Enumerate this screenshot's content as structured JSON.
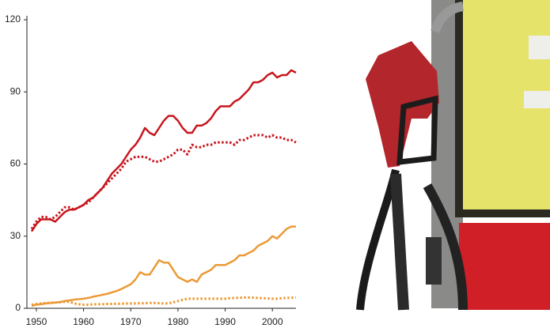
{
  "chart_data": {
    "type": "line",
    "x": [
      1949,
      1950,
      1951,
      1952,
      1953,
      1954,
      1955,
      1956,
      1957,
      1958,
      1959,
      1960,
      1961,
      1962,
      1963,
      1964,
      1965,
      1966,
      1967,
      1968,
      1969,
      1970,
      1971,
      1972,
      1973,
      1974,
      1975,
      1976,
      1977,
      1978,
      1979,
      1980,
      1981,
      1982,
      1983,
      1984,
      1985,
      1986,
      1987,
      1988,
      1989,
      1990,
      1991,
      1992,
      1993,
      1994,
      1995,
      1996,
      1997,
      1998,
      1999,
      2000,
      2001,
      2002,
      2003,
      2004,
      2005
    ],
    "series": [
      {
        "color": "#c8161d",
        "style": "solid",
        "values": [
          32,
          35,
          37,
          37,
          37,
          36,
          38,
          40,
          41,
          41,
          42,
          43,
          45,
          46,
          48,
          50,
          53,
          56,
          58,
          60,
          63,
          66,
          68,
          71,
          75,
          73,
          72,
          75,
          78,
          80,
          80,
          78,
          75,
          73,
          73,
          76,
          76,
          77,
          79,
          82,
          84,
          84,
          84,
          86,
          87,
          89,
          91,
          94,
          94,
          95,
          97,
          98,
          96,
          97,
          97,
          99,
          98
        ]
      },
      {
        "color": "#c8161d",
        "style": "dotted",
        "values": [
          33,
          36,
          38,
          38,
          37,
          38,
          40,
          42,
          42,
          41,
          42,
          43,
          44,
          46,
          48,
          50,
          52,
          54,
          56,
          58,
          61,
          62,
          63,
          63,
          63,
          62,
          61,
          61,
          62,
          63,
          64,
          66,
          66,
          64,
          68,
          67,
          67,
          68,
          68,
          69,
          69,
          69,
          69,
          68,
          70,
          70,
          71,
          72,
          72,
          72,
          71,
          72,
          71,
          71,
          70,
          70,
          69
        ]
      },
      {
        "color": "#eb9a35",
        "style": "solid",
        "values": [
          1,
          1.5,
          1.7,
          2,
          2.2,
          2.4,
          2.6,
          3,
          3.3,
          3.6,
          3.8,
          4,
          4.3,
          4.8,
          5.2,
          5.6,
          6,
          6.6,
          7.2,
          8,
          9,
          10,
          12,
          15,
          14,
          14,
          17,
          20,
          19,
          19,
          16,
          13,
          12,
          11,
          12,
          11,
          14,
          15,
          16,
          18,
          18,
          18,
          19,
          20,
          22,
          22,
          23,
          24,
          26,
          27,
          28,
          30,
          29,
          31,
          33,
          34,
          34
        ]
      },
      {
        "color": "#eb9a35",
        "style": "dotted",
        "values": [
          1.5,
          1.8,
          2,
          2.2,
          2.3,
          2.4,
          2.5,
          2.7,
          2.8,
          2,
          1.7,
          1.5,
          1.5,
          1.6,
          1.7,
          1.7,
          1.8,
          1.8,
          1.9,
          1.9,
          2,
          2,
          2,
          2.1,
          2.1,
          2.2,
          2.2,
          2.1,
          2,
          2,
          2.5,
          3,
          3.5,
          4,
          4,
          4,
          4,
          4,
          4,
          4,
          4,
          4,
          4.2,
          4.3,
          4.4,
          4.5,
          4.5,
          4.4,
          4.3,
          4.2,
          4.1,
          4,
          4,
          4.2,
          4.3,
          4.4,
          4.5
        ]
      }
    ],
    "xlim": [
      1948,
      2005
    ],
    "xticks": [
      1950,
      1960,
      1970,
      1980,
      1990,
      2000
    ],
    "ylim": [
      0,
      120
    ],
    "yticks": [
      0,
      30,
      60,
      90,
      120
    ]
  }
}
